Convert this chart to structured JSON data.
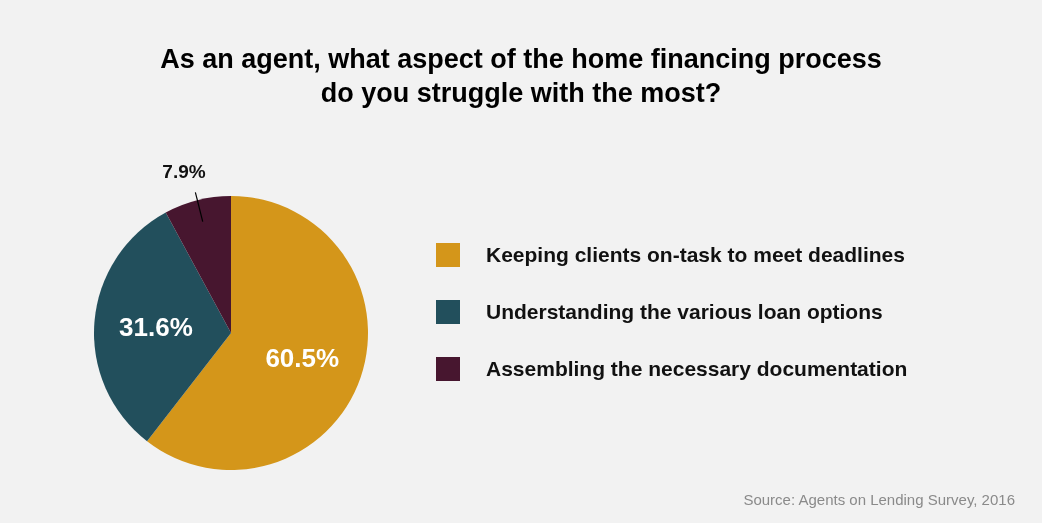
{
  "chart_data": {
    "type": "pie",
    "title": "As an agent, what aspect of the home financing process\ndo you struggle with the most?",
    "categories": [
      "Keeping clients on-task to meet deadlines",
      "Understanding the various loan options",
      "Assembling the necessary documentation"
    ],
    "values": [
      60.5,
      31.6,
      7.9
    ],
    "colors": [
      "#d4961a",
      "#224f5c",
      "#47162f"
    ],
    "value_labels": [
      "60.5%",
      "31.6%",
      "7.9%"
    ],
    "legend": "right",
    "annotations": [
      "Source: Agents on Lending Survey, 2016"
    ]
  }
}
